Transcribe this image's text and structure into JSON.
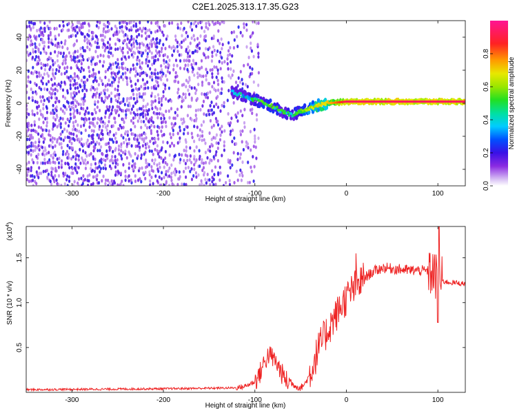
{
  "title": "C2E1.2025.313.17.35.G23",
  "chart_data": [
    {
      "type": "heatmap",
      "title": "C2E1.2025.313.17.35.G23",
      "xlabel": "Height of straight line (km)",
      "ylabel": "Frequency (Hz)",
      "xlim": [
        -350,
        130
      ],
      "ylim": [
        -50,
        50
      ],
      "xticks": [
        -300,
        -200,
        -100,
        0,
        100
      ],
      "xtick_labels": [
        "-300",
        "-200",
        "-100",
        "0",
        "100"
      ],
      "yticks": [
        -40,
        -20,
        0,
        20,
        40
      ],
      "ytick_labels": [
        "-40",
        "-20",
        "0",
        "20",
        "40"
      ],
      "colorbar": {
        "label": "Normalized spectral amplitude",
        "range": [
          0,
          1
        ],
        "ticks": [
          0,
          0.2,
          0.4,
          0.6,
          0.8
        ],
        "tick_labels": [
          "0.0",
          "0.2",
          "0.4",
          "0.6",
          "0.8"
        ]
      },
      "signal_trace": {
        "height_km": [
          -125,
          -110,
          -100,
          -90,
          -80,
          -70,
          -60,
          -50,
          -40,
          -30,
          -20,
          -10,
          0,
          20,
          60,
          100,
          130
        ],
        "frequency_hz": [
          7,
          4,
          2,
          0,
          -2,
          -5,
          -7,
          -5,
          -3,
          -1,
          0,
          0.5,
          1,
          1,
          1,
          1,
          1
        ],
        "amplitude": [
          0.35,
          0.4,
          0.45,
          0.5,
          0.5,
          0.45,
          0.45,
          0.5,
          0.6,
          0.7,
          0.75,
          0.85,
          0.95,
          0.95,
          0.95,
          0.95,
          0.95
        ]
      }
    },
    {
      "type": "line",
      "xlabel": "Height of straight line (km)",
      "ylabel": "SNR (10 * v/v)",
      "y_multiplier_label": "(x10",
      "y_multiplier_exp": "4",
      "y_multiplier_close": ")",
      "xlim": [
        -350,
        130
      ],
      "ylim": [
        0,
        1.85
      ],
      "xticks": [
        -300,
        -200,
        -100,
        0,
        100
      ],
      "xtick_labels": [
        "-300",
        "-200",
        "-100",
        "0",
        "100"
      ],
      "yticks": [
        0.5,
        1.0,
        1.5
      ],
      "ytick_labels": [
        "0.5",
        "1.0",
        "1.5"
      ],
      "series": [
        {
          "name": "SNR",
          "color": "#ee2222",
          "x": [
            -350,
            -200,
            -120,
            -110,
            -100,
            -95,
            -90,
            -85,
            -80,
            -75,
            -70,
            -65,
            -60,
            -55,
            -50,
            -45,
            -40,
            -35,
            -30,
            -25,
            -20,
            -15,
            -10,
            -5,
            0,
            5,
            10,
            15,
            20,
            30,
            40,
            50,
            60,
            70,
            80,
            90,
            95,
            100,
            105,
            110,
            120,
            130
          ],
          "y": [
            0.03,
            0.04,
            0.05,
            0.07,
            0.12,
            0.2,
            0.33,
            0.42,
            0.38,
            0.3,
            0.2,
            0.12,
            0.1,
            0.07,
            0.05,
            0.1,
            0.2,
            0.35,
            0.5,
            0.6,
            0.7,
            0.8,
            0.88,
            0.98,
            1.05,
            1.12,
            1.18,
            1.22,
            1.28,
            1.35,
            1.39,
            1.38,
            1.37,
            1.36,
            1.36,
            1.35,
            1.32,
            1.25,
            1.24,
            1.23,
            1.22,
            1.21
          ]
        }
      ]
    }
  ]
}
